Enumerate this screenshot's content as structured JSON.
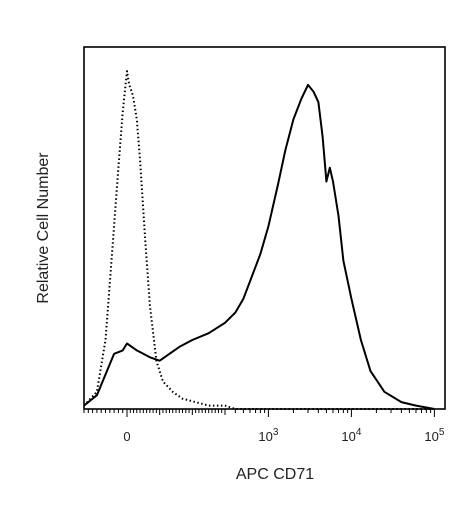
{
  "chart_data": {
    "type": "line",
    "title": "",
    "xlabel": "APC CD71",
    "ylabel": "Relative Cell Number",
    "x_scale": "biexponential",
    "xlim": [
      -100,
      100000
    ],
    "ylim": [
      0,
      1.05
    ],
    "grid": false,
    "legend": "none",
    "x_tick_labels": [
      {
        "value": 0,
        "base": "0",
        "exp": ""
      },
      {
        "value": 1000,
        "base": "10",
        "exp": "3"
      },
      {
        "value": 10000,
        "base": "10",
        "exp": "4"
      },
      {
        "value": 100000,
        "base": "10",
        "exp": "5"
      }
    ],
    "series": [
      {
        "style": "dotted",
        "x": [
          -100,
          -70,
          -50,
          -35,
          -20,
          -10,
          0,
          5,
          10,
          15,
          20,
          30,
          40,
          55,
          70,
          90,
          110,
          140,
          170,
          210,
          250,
          300,
          400,
          600,
          1000,
          3000,
          10000,
          100000
        ],
        "y": [
          0.01,
          0.05,
          0.2,
          0.45,
          0.7,
          0.86,
          0.98,
          0.95,
          0.93,
          0.92,
          0.9,
          0.84,
          0.72,
          0.5,
          0.3,
          0.14,
          0.08,
          0.05,
          0.03,
          0.02,
          0.01,
          0.01,
          0.0,
          0.0,
          0.0,
          0.0,
          0.0,
          0.0
        ]
      },
      {
        "style": "solid",
        "x": [
          -100,
          -70,
          -50,
          -30,
          -10,
          0,
          15,
          30,
          50,
          70,
          100,
          130,
          160,
          200,
          250,
          300,
          400,
          500,
          600,
          800,
          1000,
          1300,
          1600,
          2000,
          2500,
          3000,
          3500,
          4000,
          4500,
          5000,
          5500,
          6000,
          7000,
          8000,
          10000,
          13000,
          17000,
          25000,
          40000,
          60000,
          100000
        ],
        "y": [
          0.01,
          0.04,
          0.1,
          0.16,
          0.17,
          0.19,
          0.18,
          0.17,
          0.16,
          0.15,
          0.14,
          0.16,
          0.18,
          0.2,
          0.22,
          0.25,
          0.28,
          0.32,
          0.37,
          0.45,
          0.53,
          0.65,
          0.75,
          0.84,
          0.9,
          0.94,
          0.92,
          0.89,
          0.79,
          0.66,
          0.7,
          0.66,
          0.56,
          0.43,
          0.32,
          0.2,
          0.11,
          0.05,
          0.02,
          0.01,
          0.0
        ]
      }
    ]
  }
}
